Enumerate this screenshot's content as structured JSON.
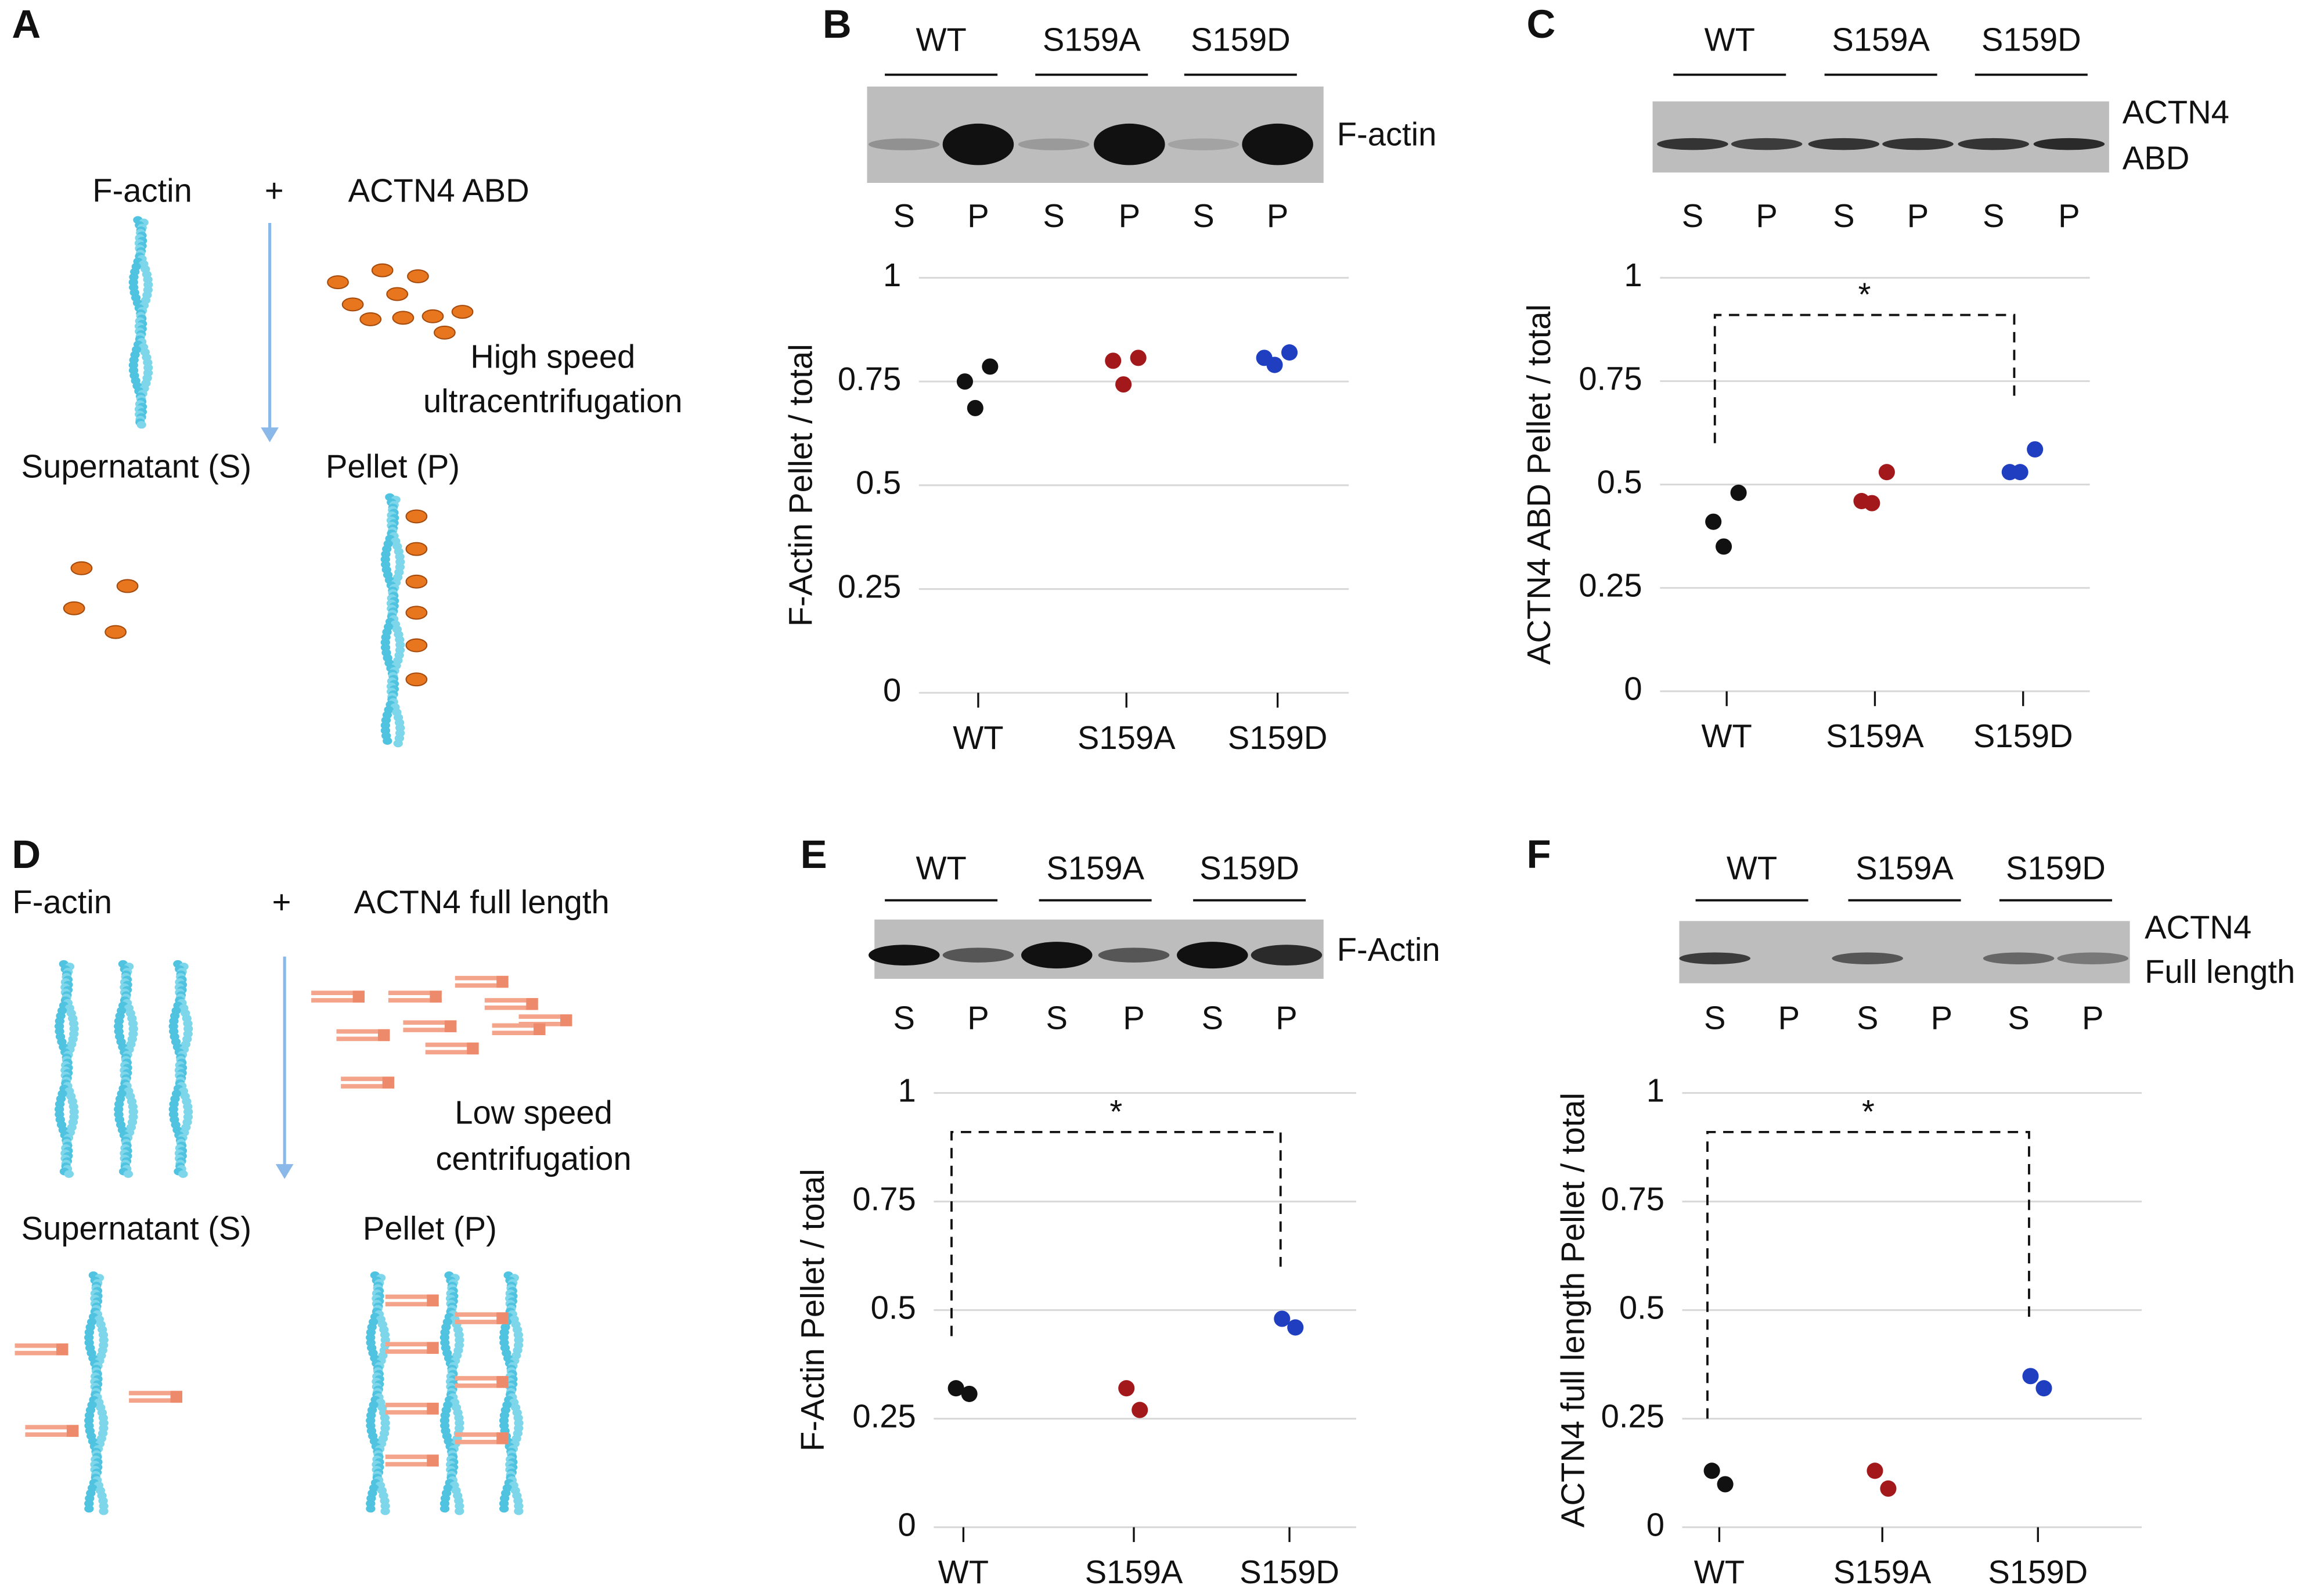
{
  "diagrams": [
    {
      "panel_label": "A",
      "left": "F-actin",
      "plus": "+",
      "protein": "ACTN4 ABD",
      "method": [
        "High speed",
        "ultracentrifugation"
      ],
      "supernatant": "Supernatant (S)",
      "pellet": "Pellet (P)"
    },
    {
      "panel_label": "D",
      "left": "F-actin",
      "plus": "+",
      "protein": "ACTN4 full length",
      "method": [
        "Low speed",
        "centrifugation"
      ],
      "supernatant": "Supernatant (S)",
      "pellet": "Pellet (P)"
    }
  ],
  "chart_data": [
    {
      "type": "strip",
      "panel_label": "B",
      "y_label": "F-Actin Pellet / total",
      "blot": {
        "groups": [
          "WT",
          "S159A",
          "S159D"
        ],
        "lanes": [
          "S",
          "P",
          "S",
          "P",
          "S",
          "P"
        ],
        "label": [
          "F-actin"
        ]
      },
      "categories": [
        "WT",
        "S159A",
        "S159D"
      ],
      "colors": [
        "#111111",
        "#a3191b",
        "#1f3fc0"
      ],
      "values": [
        [
          0.75,
          0.786,
          0.686
        ],
        [
          0.8,
          0.807,
          0.743
        ],
        [
          0.807,
          0.82,
          0.79
        ]
      ],
      "ylim": [
        0,
        1
      ],
      "yticks": [
        0,
        0.25,
        0.5,
        0.75,
        1
      ],
      "grid": true
    },
    {
      "type": "strip",
      "panel_label": "C",
      "y_label": "ACTN4 ABD Pellet / total",
      "annotation": "*",
      "blot": {
        "groups": [
          "WT",
          "S159A",
          "S159D"
        ],
        "lanes": [
          "S",
          "P",
          "S",
          "P",
          "S",
          "P"
        ],
        "label": [
          "ACTN4",
          "ABD"
        ]
      },
      "categories": [
        "WT",
        "S159A",
        "S159D"
      ],
      "colors": [
        "#111111",
        "#a3191b",
        "#1f3fc0"
      ],
      "values": [
        [
          0.41,
          0.48,
          0.35
        ],
        [
          0.46,
          0.53,
          0.455
        ],
        [
          0.53,
          0.585,
          0.53
        ]
      ],
      "ylim": [
        0,
        1
      ],
      "yticks": [
        0,
        0.25,
        0.5,
        0.75,
        1
      ],
      "grid": true
    },
    {
      "type": "strip",
      "panel_label": "E",
      "y_label": "F-Actin Pellet / total",
      "annotation": "*",
      "blot": {
        "groups": [
          "WT",
          "S159A",
          "S159D"
        ],
        "lanes": [
          "S",
          "P",
          "S",
          "P",
          "S",
          "P"
        ],
        "label": [
          "F-Actin"
        ]
      },
      "categories": [
        "WT",
        "S159A",
        "S159D"
      ],
      "colors": [
        "#111111",
        "#a3191b",
        "#1f3fc0"
      ],
      "values": [
        [
          0.32,
          0.307
        ],
        [
          0.32,
          0.27
        ],
        [
          0.48,
          0.46
        ]
      ],
      "ylim": [
        0,
        1
      ],
      "yticks": [
        0,
        0.25,
        0.5,
        0.75,
        1
      ],
      "grid": true
    },
    {
      "type": "strip",
      "panel_label": "F",
      "y_label": "ACTN4 full length Pellet / total",
      "annotation": "*",
      "blot": {
        "groups": [
          "WT",
          "S159A",
          "S159D"
        ],
        "lanes": [
          "S",
          "P",
          "S",
          "P",
          "S",
          "P"
        ],
        "label": [
          "ACTN4",
          "Full length"
        ]
      },
      "categories": [
        "WT",
        "S159A",
        "S159D"
      ],
      "colors": [
        "#111111",
        "#a3191b",
        "#1f3fc0"
      ],
      "values": [
        [
          0.13,
          0.099
        ],
        [
          0.13,
          0.089
        ],
        [
          0.348,
          0.32
        ]
      ],
      "ylim": [
        0,
        1
      ],
      "yticks": [
        0,
        0.25,
        0.5,
        0.75,
        1
      ],
      "grid": true
    }
  ]
}
